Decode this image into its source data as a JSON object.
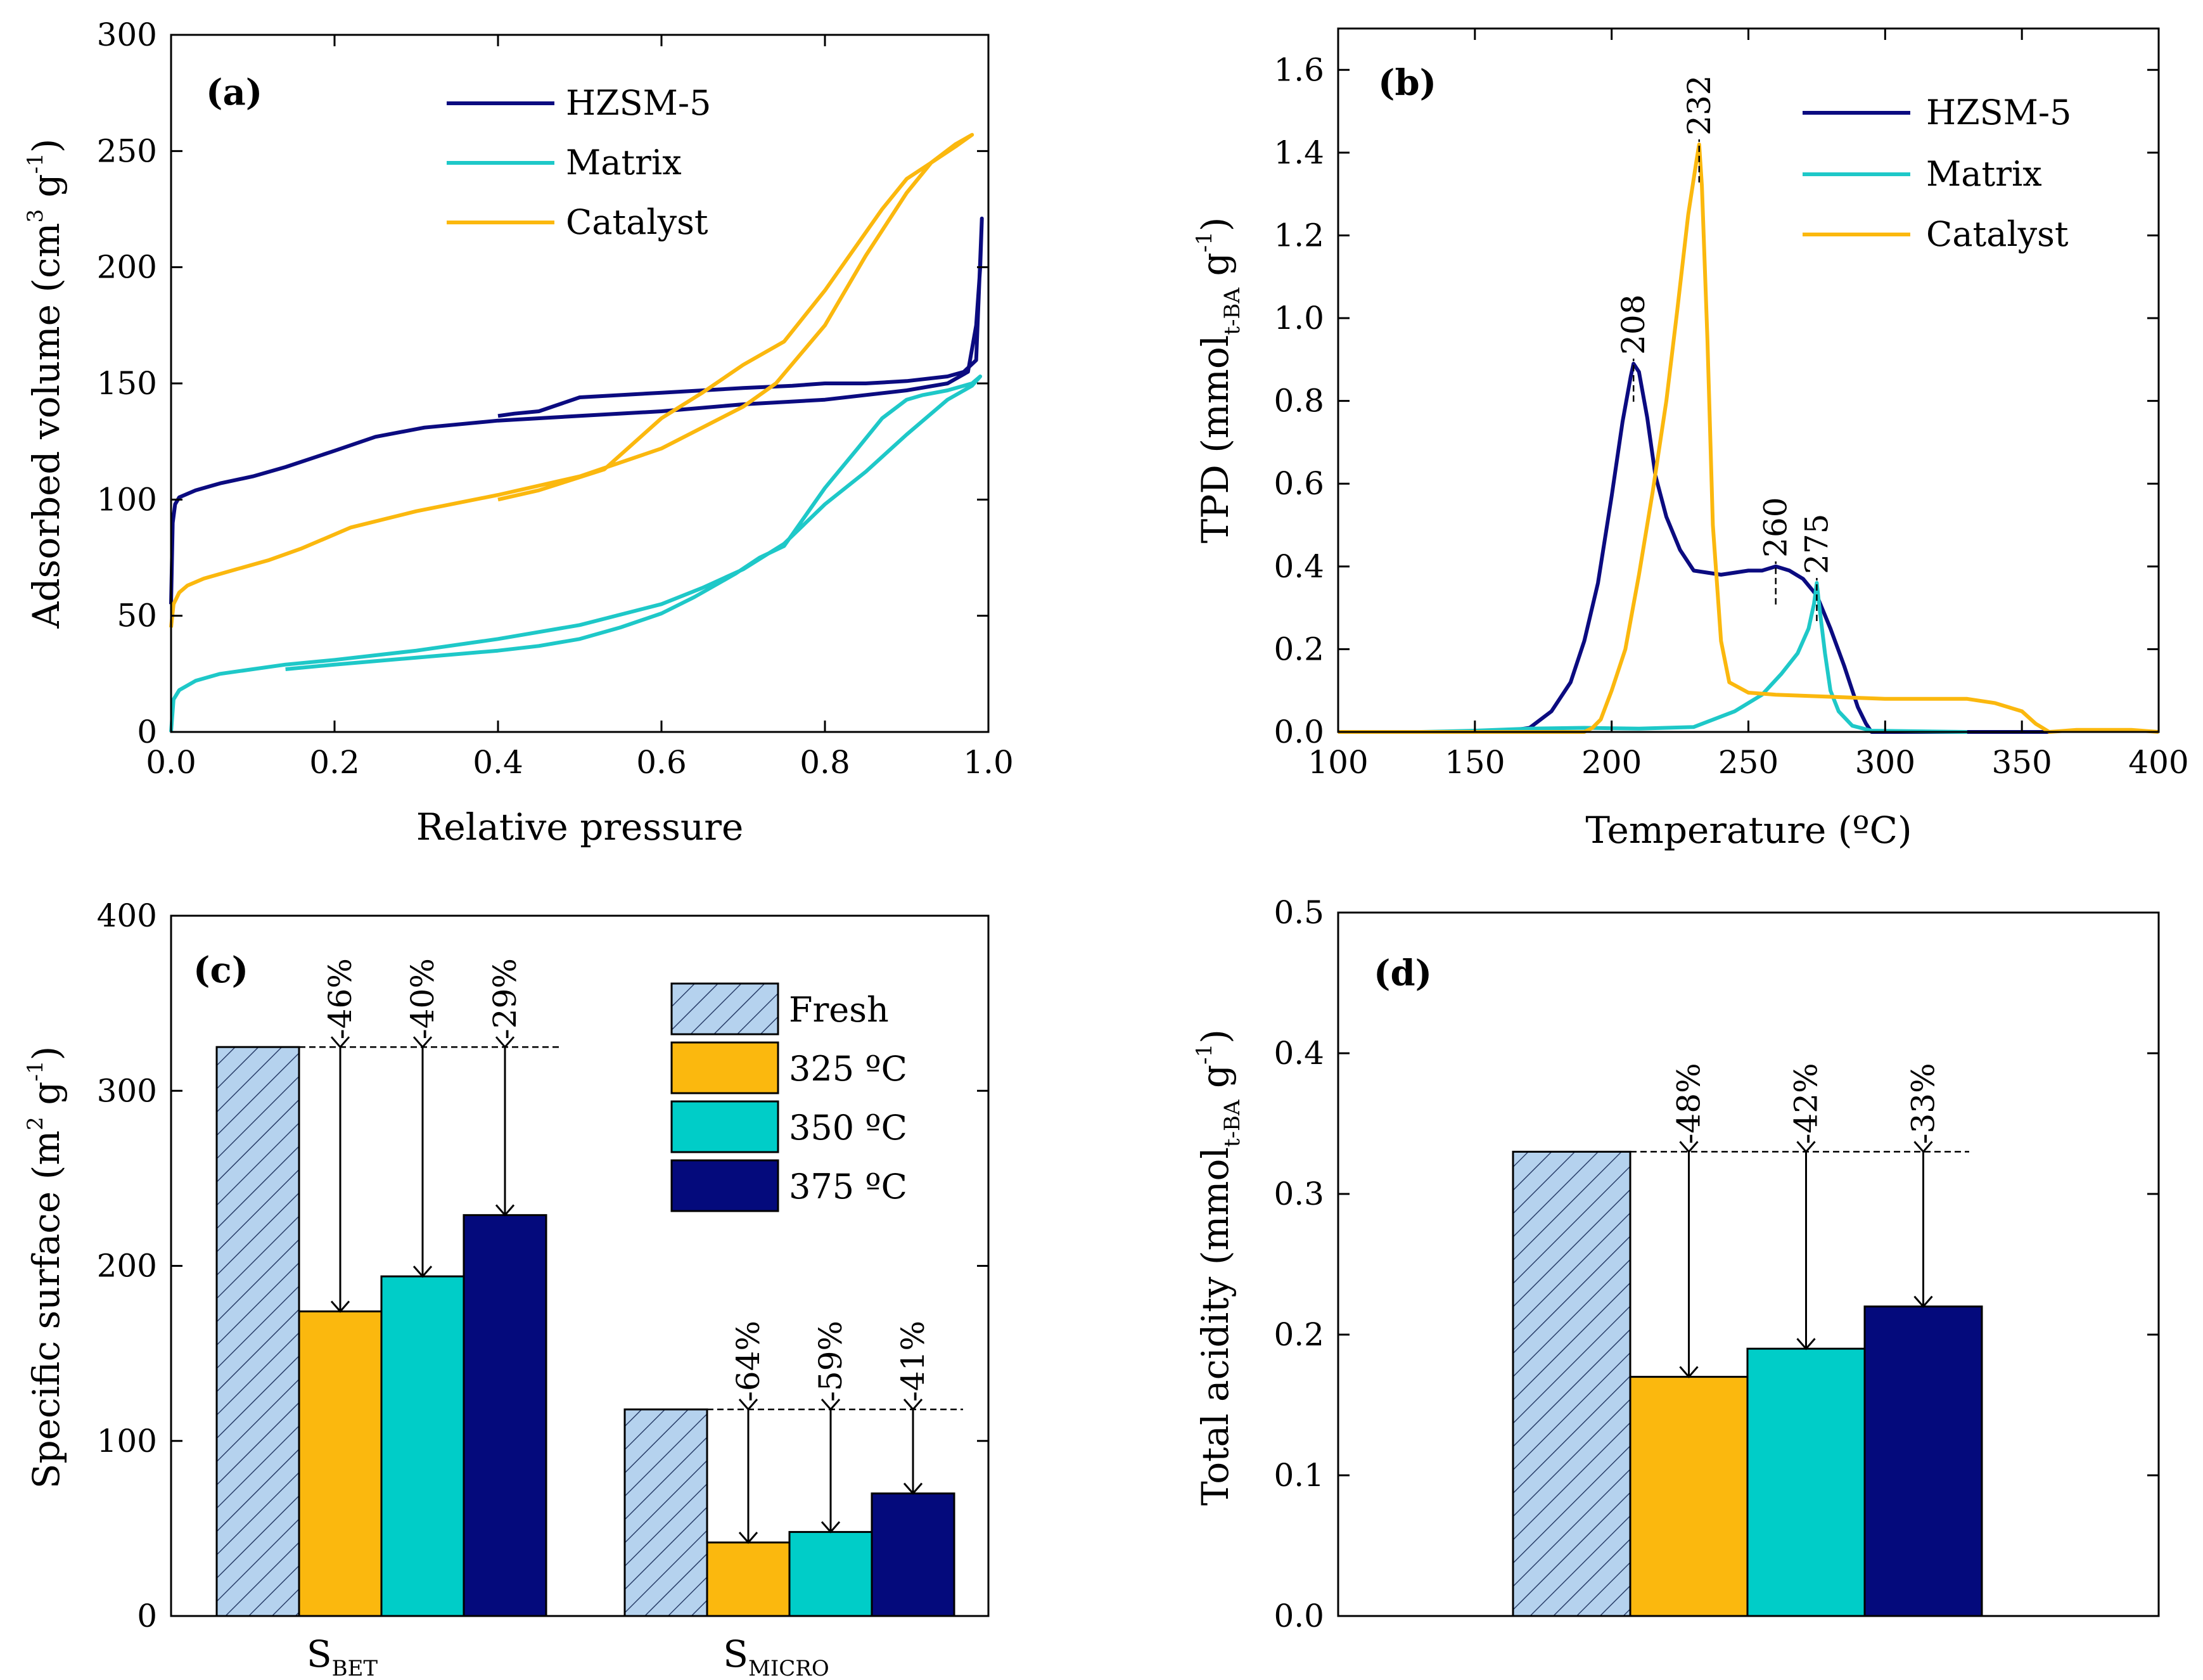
{
  "colors": {
    "hzsm": "#0b0b80",
    "matrix": "#1ec8c8",
    "catalyst": "#fbb80e",
    "fresh": "#b5d2ee",
    "c325": "#fbb80e",
    "c350": "#00cdc8",
    "c375": "#040a7c"
  },
  "chart_data": [
    {
      "panel": "(a)",
      "type": "line",
      "xlabel": "Relative pressure",
      "ylabel_main": "Adsorbed volume (cm",
      "ylabel_sup1": "3",
      "ylabel_mid": " g",
      "ylabel_sup2": "-1",
      "ylabel_end": ")",
      "xlim": [
        0.0,
        1.0
      ],
      "ylim": [
        0,
        300
      ],
      "xticks": [
        "0.0",
        "0.2",
        "0.4",
        "0.6",
        "0.8",
        "1.0"
      ],
      "yticks": [
        "0",
        "50",
        "100",
        "150",
        "200",
        "250",
        "300"
      ],
      "legend": [
        "HZSM-5",
        "Matrix",
        "Catalyst"
      ],
      "series": [
        {
          "name": "HZSM-5",
          "color": "hzsm",
          "x": [
            0.0,
            0.002,
            0.005,
            0.01,
            0.03,
            0.06,
            0.1,
            0.14,
            0.2,
            0.25,
            0.31,
            0.4,
            0.5,
            0.6,
            0.7,
            0.8,
            0.9,
            0.95,
            0.975,
            0.985,
            0.99,
            0.992,
            0.985,
            0.97,
            0.95,
            0.9,
            0.85,
            0.8,
            0.76,
            0.7,
            0.6,
            0.5,
            0.45,
            0.42,
            0.4
          ],
          "y": [
            55,
            90,
            98,
            101,
            104,
            107,
            110,
            114,
            121,
            127,
            131,
            134,
            136,
            138,
            141,
            143,
            147,
            150,
            155,
            175,
            200,
            221,
            160,
            155,
            153,
            151,
            150,
            150,
            149,
            148,
            146,
            144,
            138,
            137,
            136
          ]
        },
        {
          "name": "Matrix",
          "color": "matrix",
          "x": [
            0.0,
            0.003,
            0.01,
            0.03,
            0.06,
            0.1,
            0.14,
            0.2,
            0.3,
            0.4,
            0.5,
            0.6,
            0.65,
            0.7,
            0.75,
            0.8,
            0.85,
            0.9,
            0.95,
            0.98,
            0.99,
            0.98,
            0.95,
            0.92,
            0.9,
            0.87,
            0.84,
            0.8,
            0.75,
            0.72,
            0.69,
            0.66,
            0.64,
            0.6,
            0.55,
            0.5,
            0.45,
            0.4,
            0.3,
            0.2,
            0.14
          ],
          "y": [
            0,
            14,
            18,
            22,
            25,
            27,
            29,
            31,
            35,
            40,
            46,
            55,
            62,
            70,
            81,
            98,
            112,
            128,
            143,
            149,
            153,
            150,
            147,
            145,
            143,
            135,
            122,
            105,
            80,
            75,
            68,
            62,
            58,
            51,
            45,
            40,
            37,
            35,
            32,
            29,
            27
          ]
        },
        {
          "name": "Catalyst",
          "color": "catalyst",
          "x": [
            0.0,
            0.003,
            0.01,
            0.02,
            0.04,
            0.08,
            0.12,
            0.16,
            0.22,
            0.3,
            0.4,
            0.5,
            0.6,
            0.7,
            0.74,
            0.8,
            0.85,
            0.9,
            0.93,
            0.96,
            0.98,
            0.96,
            0.93,
            0.9,
            0.87,
            0.84,
            0.8,
            0.75,
            0.7,
            0.65,
            0.6,
            0.53,
            0.45,
            0.4
          ],
          "y": [
            45,
            55,
            60,
            63,
            66,
            70,
            74,
            79,
            88,
            95,
            102,
            110,
            122,
            140,
            150,
            175,
            205,
            232,
            245,
            253,
            257,
            252,
            245,
            238,
            225,
            210,
            190,
            168,
            158,
            146,
            135,
            113,
            104,
            100
          ]
        }
      ]
    },
    {
      "panel": "(b)",
      "type": "line",
      "xlabel": "Temperature (ºC)",
      "ylabel_main": "TPD (mmol",
      "ylabel_sub": "t-BA",
      "ylabel_mid": " g",
      "ylabel_sup": "-1",
      "ylabel_end": ")",
      "xlim": [
        100,
        400
      ],
      "ylim": [
        0.0,
        1.7
      ],
      "xticks": [
        "100",
        "150",
        "200",
        "250",
        "300",
        "350",
        "400"
      ],
      "yticks": [
        "0.0",
        "0.2",
        "0.4",
        "0.6",
        "0.8",
        "1.0",
        "1.2",
        "1.4",
        "1.6"
      ],
      "legend": [
        "HZSM-5",
        "Matrix",
        "Catalyst"
      ],
      "peak_labels": [
        {
          "text": "208",
          "x": 208,
          "y": 0.89
        },
        {
          "text": "232",
          "x": 232,
          "y": 1.42
        },
        {
          "text": "260",
          "x": 260,
          "y": 0.4
        },
        {
          "text": "275",
          "x": 275,
          "y": 0.36
        }
      ],
      "series": [
        {
          "name": "HZSM-5",
          "color": "hzsm",
          "x": [
            160,
            170,
            178,
            185,
            190,
            195,
            200,
            204,
            207,
            208,
            210,
            213,
            216,
            220,
            225,
            230,
            240,
            250,
            255,
            260,
            265,
            270,
            275,
            280,
            285,
            290,
            293,
            295,
            300,
            320,
            340,
            350,
            360
          ],
          "y": [
            0.0,
            0.01,
            0.05,
            0.12,
            0.22,
            0.36,
            0.57,
            0.75,
            0.86,
            0.89,
            0.87,
            0.76,
            0.62,
            0.52,
            0.44,
            0.39,
            0.38,
            0.39,
            0.39,
            0.4,
            0.39,
            0.37,
            0.33,
            0.25,
            0.16,
            0.06,
            0.02,
            0.0,
            0.0,
            0.0,
            0.0,
            0.0,
            0.0
          ]
        },
        {
          "name": "Matrix",
          "color": "matrix",
          "x": [
            130,
            150,
            170,
            190,
            210,
            230,
            245,
            255,
            262,
            268,
            272,
            274,
            275,
            276,
            278,
            280,
            283,
            288,
            295,
            330
          ],
          "y": [
            0.0,
            0.003,
            0.008,
            0.01,
            0.008,
            0.012,
            0.05,
            0.09,
            0.14,
            0.19,
            0.25,
            0.31,
            0.36,
            0.3,
            0.19,
            0.1,
            0.05,
            0.015,
            0.003,
            0.0
          ]
        },
        {
          "name": "Catalyst",
          "color": "catalyst",
          "x": [
            100,
            150,
            190,
            193,
            196,
            200,
            205,
            210,
            215,
            220,
            224,
            228,
            231,
            232,
            233,
            235,
            237,
            240,
            243,
            250,
            260,
            280,
            300,
            320,
            330,
            340,
            350,
            355,
            360,
            370,
            390,
            400
          ],
          "y": [
            0.0,
            0.0,
            0.0,
            0.01,
            0.03,
            0.1,
            0.2,
            0.38,
            0.58,
            0.8,
            1.02,
            1.25,
            1.38,
            1.42,
            1.32,
            0.95,
            0.5,
            0.22,
            0.12,
            0.095,
            0.09,
            0.085,
            0.08,
            0.08,
            0.08,
            0.07,
            0.05,
            0.02,
            0.0,
            0.005,
            0.005,
            0.0
          ]
        }
      ]
    },
    {
      "panel": "(c)",
      "type": "bar",
      "ylabel_main": "Specific surface (m",
      "ylabel_sup1": "2",
      "ylabel_mid": " g",
      "ylabel_sup2": "-1",
      "ylabel_end": ")",
      "ylim": [
        0,
        400
      ],
      "yticks": [
        "0",
        "100",
        "200",
        "300",
        "400"
      ],
      "groups": [
        {
          "label": "S",
          "sub": "BET",
          "fresh": 325,
          "treated": [
            174,
            194,
            229
          ],
          "pct": [
            "-46%",
            "-40%",
            "-29%"
          ]
        },
        {
          "label": "S",
          "sub": "MICRO",
          "fresh": 118,
          "treated": [
            42,
            48,
            70
          ],
          "pct": [
            "-64%",
            "-59%",
            "-41%"
          ]
        }
      ],
      "legend": [
        "Fresh",
        "325 ºC",
        "350 ºC",
        "375 ºC"
      ]
    },
    {
      "panel": "(d)",
      "type": "bar",
      "ylabel_main": "Total acidity (mmol",
      "ylabel_sub": "t-BA",
      "ylabel_mid": " g",
      "ylabel_sup": "-1",
      "ylabel_end": ")",
      "ylim": [
        0.0,
        0.5
      ],
      "yticks": [
        "0.0",
        "0.1",
        "0.2",
        "0.3",
        "0.4",
        "0.5"
      ],
      "fresh": 0.33,
      "treated": [
        0.17,
        0.19,
        0.22
      ],
      "pct": [
        "-48%",
        "-42%",
        "-33%"
      ]
    }
  ]
}
